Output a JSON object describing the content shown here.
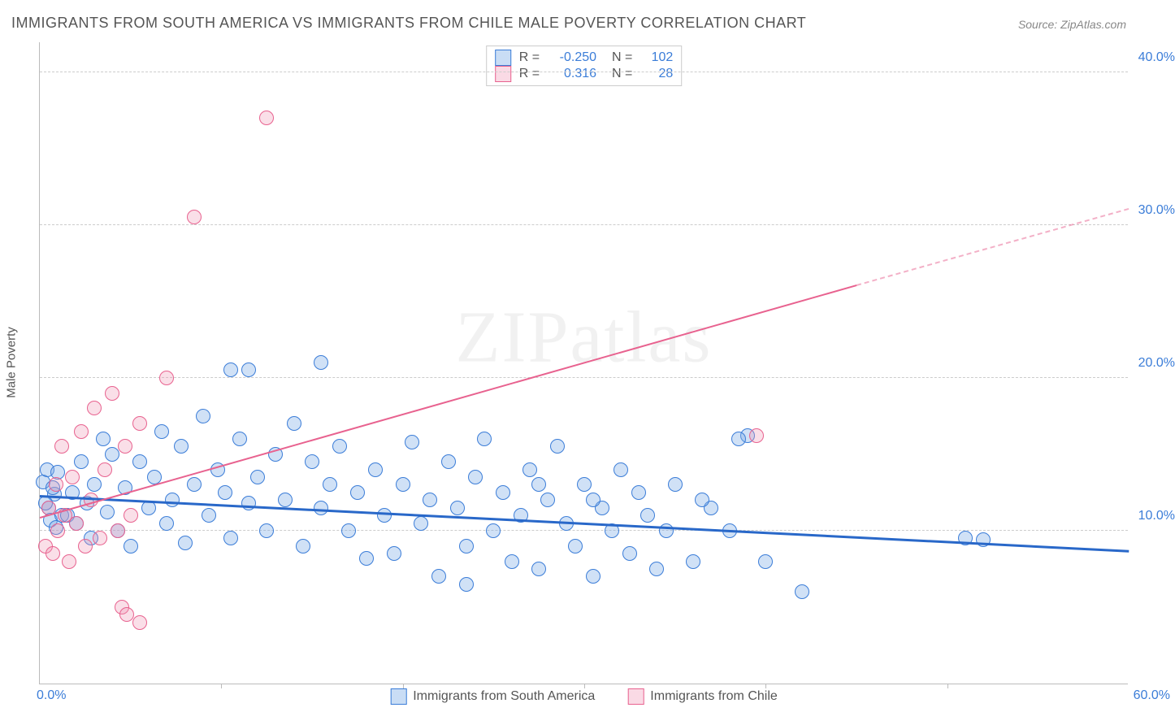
{
  "title": "IMMIGRANTS FROM SOUTH AMERICA VS IMMIGRANTS FROM CHILE MALE POVERTY CORRELATION CHART",
  "source_label": "Source: ",
  "source_value": "ZipAtlas.com",
  "y_axis_label": "Male Poverty",
  "watermark": "ZIPatlas",
  "chart": {
    "type": "scatter",
    "xlim": [
      0,
      60
    ],
    "ylim": [
      0,
      42
    ],
    "y_ticks": [
      10,
      20,
      30,
      40
    ],
    "y_tick_labels": [
      "10.0%",
      "20.0%",
      "30.0%",
      "40.0%"
    ],
    "x_ticks": [
      0,
      10,
      20,
      30,
      40,
      50,
      60
    ],
    "x_axis_min_label": "0.0%",
    "x_axis_max_label": "60.0%",
    "background_color": "#ffffff",
    "grid_color": "#cccccc",
    "marker_radius": 9,
    "series": [
      {
        "name": "Immigrants from South America",
        "color_fill": "rgba(120,170,230,0.35)",
        "color_stroke": "#3b7dd8",
        "R": "-0.250",
        "N": "102",
        "trend": {
          "x1": 0,
          "y1": 12.2,
          "x2": 60,
          "y2": 8.6,
          "color": "#2968c9"
        },
        "points": [
          [
            0.2,
            13.2
          ],
          [
            0.4,
            14.0
          ],
          [
            0.5,
            11.5
          ],
          [
            0.8,
            12.4
          ],
          [
            0.6,
            10.7
          ],
          [
            1.0,
            13.8
          ],
          [
            1.2,
            11.0
          ],
          [
            0.3,
            11.8
          ],
          [
            0.7,
            12.8
          ],
          [
            0.9,
            10.2
          ],
          [
            1.5,
            11.0
          ],
          [
            1.8,
            12.5
          ],
          [
            2.0,
            10.5
          ],
          [
            2.3,
            14.5
          ],
          [
            2.6,
            11.8
          ],
          [
            2.8,
            9.5
          ],
          [
            3.0,
            13.0
          ],
          [
            3.5,
            16.0
          ],
          [
            3.7,
            11.2
          ],
          [
            4.0,
            15.0
          ],
          [
            4.3,
            10.0
          ],
          [
            4.7,
            12.8
          ],
          [
            5.0,
            9.0
          ],
          [
            10.5,
            20.5
          ],
          [
            5.5,
            14.5
          ],
          [
            6.0,
            11.5
          ],
          [
            6.3,
            13.5
          ],
          [
            6.7,
            16.5
          ],
          [
            7.0,
            10.5
          ],
          [
            7.3,
            12.0
          ],
          [
            7.8,
            15.5
          ],
          [
            8.0,
            9.2
          ],
          [
            8.5,
            13.0
          ],
          [
            9.0,
            17.5
          ],
          [
            9.3,
            11.0
          ],
          [
            9.8,
            14.0
          ],
          [
            10.2,
            12.5
          ],
          [
            10.5,
            9.5
          ],
          [
            11.0,
            16.0
          ],
          [
            11.5,
            11.8
          ],
          [
            12.0,
            13.5
          ],
          [
            12.5,
            10.0
          ],
          [
            13.0,
            15.0
          ],
          [
            13.5,
            12.0
          ],
          [
            14.0,
            17.0
          ],
          [
            14.5,
            9.0
          ],
          [
            15.0,
            14.5
          ],
          [
            15.5,
            11.5
          ],
          [
            16.0,
            13.0
          ],
          [
            16.5,
            15.5
          ],
          [
            17.0,
            10.0
          ],
          [
            17.5,
            12.5
          ],
          [
            18.0,
            8.2
          ],
          [
            18.5,
            14.0
          ],
          [
            19.0,
            11.0
          ],
          [
            19.5,
            8.5
          ],
          [
            20.0,
            13.0
          ],
          [
            20.5,
            15.8
          ],
          [
            21.0,
            10.5
          ],
          [
            21.5,
            12.0
          ],
          [
            22.0,
            7.0
          ],
          [
            22.5,
            14.5
          ],
          [
            23.0,
            11.5
          ],
          [
            23.5,
            9.0
          ],
          [
            24.0,
            13.5
          ],
          [
            24.5,
            16.0
          ],
          [
            25.0,
            10.0
          ],
          [
            25.5,
            12.5
          ],
          [
            26.0,
            8.0
          ],
          [
            26.5,
            11.0
          ],
          [
            27.0,
            14.0
          ],
          [
            27.5,
            7.5
          ],
          [
            28.0,
            12.0
          ],
          [
            28.5,
            15.5
          ],
          [
            29.0,
            10.5
          ],
          [
            29.5,
            9.0
          ],
          [
            30.0,
            13.0
          ],
          [
            30.5,
            7.0
          ],
          [
            31.0,
            11.5
          ],
          [
            31.5,
            10.0
          ],
          [
            32.0,
            14.0
          ],
          [
            32.5,
            8.5
          ],
          [
            33.0,
            12.5
          ],
          [
            33.5,
            11.0
          ],
          [
            34.0,
            7.5
          ],
          [
            34.5,
            10.0
          ],
          [
            35.0,
            13.0
          ],
          [
            36.0,
            8.0
          ],
          [
            37.0,
            11.5
          ],
          [
            38.0,
            10.0
          ],
          [
            39.0,
            16.2
          ],
          [
            40.0,
            8.0
          ],
          [
            42.0,
            6.0
          ],
          [
            51.0,
            9.5
          ],
          [
            52.0,
            9.4
          ],
          [
            38.5,
            16.0
          ],
          [
            30.5,
            12.0
          ],
          [
            23.5,
            6.5
          ],
          [
            27.5,
            13.0
          ],
          [
            36.5,
            12.0
          ],
          [
            15.5,
            21.0
          ],
          [
            11.5,
            20.5
          ]
        ]
      },
      {
        "name": "Immigrants from Chile",
        "color_fill": "rgba(240,150,180,0.3)",
        "color_stroke": "#e8628f",
        "R": "0.316",
        "N": "28",
        "trend": {
          "x1": 0,
          "y1": 10.8,
          "x2": 45,
          "y2": 26.0,
          "color": "#e8628f",
          "dash_x1": 45,
          "dash_y1": 26.0,
          "dash_x2": 60,
          "dash_y2": 31.0
        },
        "points": [
          [
            0.3,
            9.0
          ],
          [
            0.5,
            11.5
          ],
          [
            0.7,
            8.5
          ],
          [
            0.9,
            13.0
          ],
          [
            1.0,
            10.0
          ],
          [
            1.2,
            15.5
          ],
          [
            1.4,
            11.0
          ],
          [
            1.6,
            8.0
          ],
          [
            1.8,
            13.5
          ],
          [
            2.0,
            10.5
          ],
          [
            2.3,
            16.5
          ],
          [
            2.5,
            9.0
          ],
          [
            2.8,
            12.0
          ],
          [
            3.0,
            18.0
          ],
          [
            3.3,
            9.5
          ],
          [
            3.6,
            14.0
          ],
          [
            4.0,
            19.0
          ],
          [
            4.3,
            10.0
          ],
          [
            4.7,
            15.5
          ],
          [
            4.5,
            5.0
          ],
          [
            5.0,
            11.0
          ],
          [
            5.5,
            17.0
          ],
          [
            4.8,
            4.5
          ],
          [
            5.5,
            4.0
          ],
          [
            7.0,
            20.0
          ],
          [
            8.5,
            30.5
          ],
          [
            12.5,
            37.0
          ],
          [
            39.5,
            16.2
          ]
        ]
      }
    ]
  },
  "legend": {
    "series1_label": "Immigrants from South America",
    "series2_label": "Immigrants from Chile"
  }
}
